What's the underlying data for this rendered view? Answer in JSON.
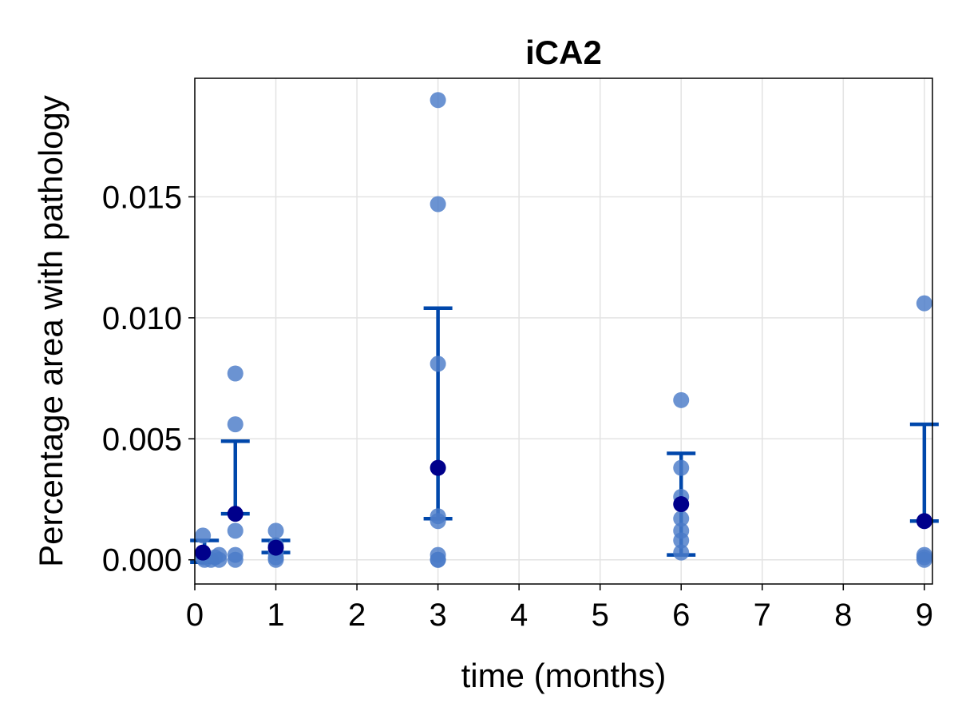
{
  "chart_data": {
    "type": "scatter",
    "title": "iCA2",
    "xlabel": "time (months)",
    "ylabel": "Percentage area with pathology",
    "xlim": [
      0,
      9.1
    ],
    "ylim": [
      -0.001,
      0.0199
    ],
    "x_ticks": [
      0,
      1,
      2,
      3,
      4,
      5,
      6,
      7,
      8,
      9
    ],
    "x_tick_labels": [
      "0",
      "1",
      "2",
      "3",
      "4",
      "5",
      "6",
      "7",
      "8",
      "9"
    ],
    "y_ticks": [
      0.0,
      0.005,
      0.01,
      0.015
    ],
    "y_tick_labels": [
      "0.000",
      "0.005",
      "0.010",
      "0.015"
    ],
    "grid": true,
    "colors": {
      "individual_points": "#4a7bc8",
      "mean_points": "#00008b",
      "error_bars": "#0047ab"
    },
    "series": [
      {
        "role": "individual",
        "points": [
          [
            0.1,
            0.001
          ],
          [
            0.1,
            0.0002
          ],
          [
            0.1,
            0.0001
          ],
          [
            0.12,
            0.0
          ],
          [
            0.2,
            0.0
          ],
          [
            0.25,
            0.0001
          ],
          [
            0.3,
            0.0002
          ],
          [
            0.3,
            0.0
          ],
          [
            0.5,
            0.0077
          ],
          [
            0.5,
            0.0056
          ],
          [
            0.5,
            0.0012
          ],
          [
            0.5,
            0.0002
          ],
          [
            0.5,
            0.0
          ],
          [
            1,
            0.0012
          ],
          [
            1,
            0.0006
          ],
          [
            1,
            0.0003
          ],
          [
            1,
            0.0001
          ],
          [
            1,
            0.0
          ],
          [
            3,
            0.019
          ],
          [
            3,
            0.0147
          ],
          [
            3,
            0.0081
          ],
          [
            3,
            0.0018
          ],
          [
            3,
            0.0016
          ],
          [
            3,
            0.0002
          ],
          [
            3,
            0.0
          ],
          [
            3,
            0.0
          ],
          [
            6,
            0.0066
          ],
          [
            6,
            0.0038
          ],
          [
            6,
            0.0026
          ],
          [
            6,
            0.0017
          ],
          [
            6,
            0.0012
          ],
          [
            6,
            0.0008
          ],
          [
            6,
            0.0003
          ],
          [
            9,
            0.0106
          ],
          [
            9,
            0.0002
          ],
          [
            9,
            0.0001
          ],
          [
            9,
            0.0
          ]
        ]
      },
      {
        "role": "mean",
        "points": [
          [
            0.1,
            0.0003
          ],
          [
            0.5,
            0.0019
          ],
          [
            1,
            0.0005
          ],
          [
            3,
            0.0038
          ],
          [
            6,
            0.0023
          ],
          [
            9,
            0.0016
          ]
        ]
      }
    ],
    "error_bars": [
      {
        "x": 0.12,
        "low": -0.0001,
        "high": 0.0008
      },
      {
        "x": 0.5,
        "low": 0.0019,
        "high": 0.0049
      },
      {
        "x": 1,
        "low": 0.0003,
        "high": 0.0008
      },
      {
        "x": 3,
        "low": 0.0017,
        "high": 0.0104
      },
      {
        "x": 6,
        "low": 0.0002,
        "high": 0.0044
      },
      {
        "x": 9,
        "low": 0.0016,
        "high": 0.0056
      }
    ]
  }
}
